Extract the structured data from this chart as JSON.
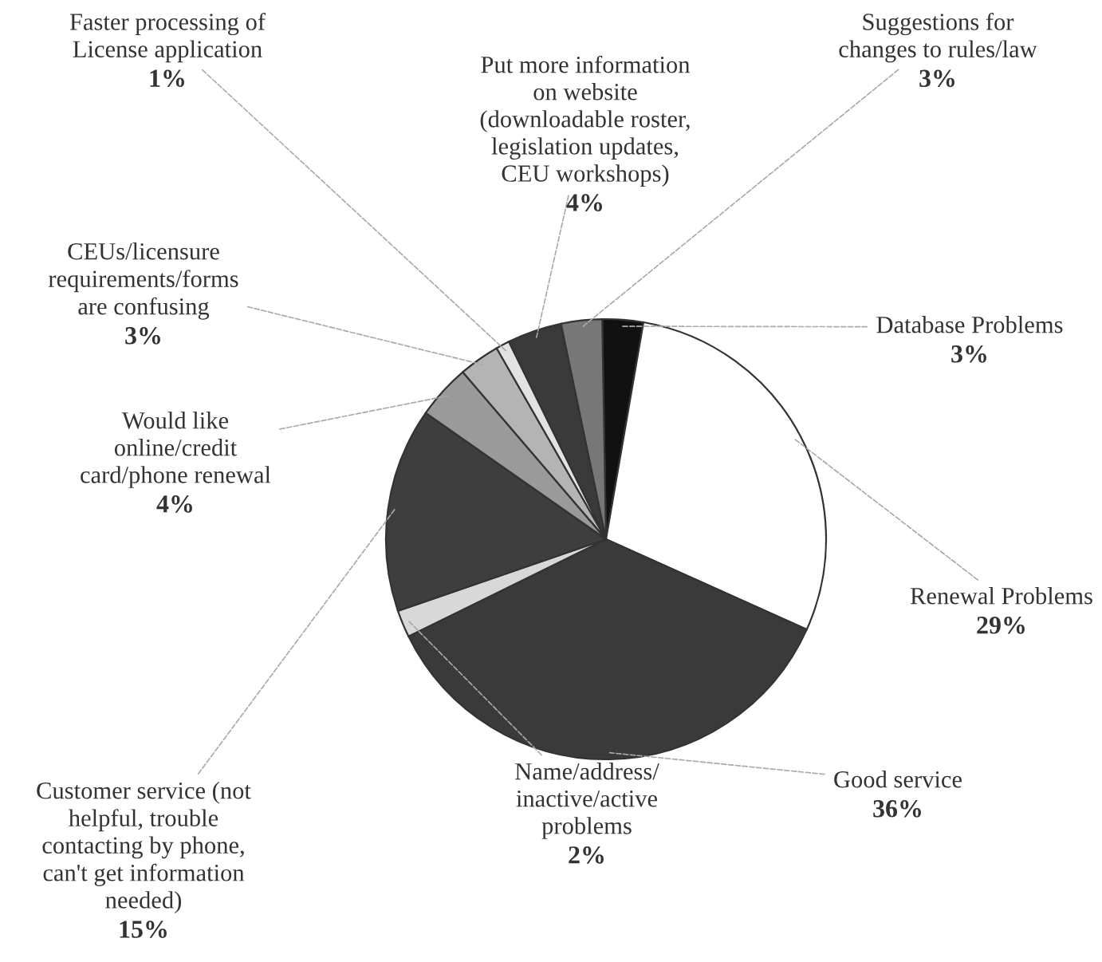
{
  "chart_data": {
    "type": "pie",
    "categories": [
      "Database Problems",
      "Renewal Problems",
      "Good service",
      "Name/address/\ninactive/active\nproblems",
      "Customer service (not\nhelpful, trouble\ncontacting by phone,\ncan't get information\nneeded)",
      "Would like\nonline/credit\ncard/phone renewal",
      "CEUs/licensure\nrequirements/forms\nare confusing",
      "Faster processing of\nLicense application",
      "Put more information\non website\n(downloadable roster,\nlegislation updates,\nCEU workshops)",
      "Suggestions for\nchanges to rules/law"
    ],
    "values": [
      3,
      29,
      36,
      2,
      15,
      4,
      3,
      1,
      4,
      3
    ],
    "value_labels": [
      "3%",
      "29%",
      "36%",
      "2%",
      "15%",
      "4%",
      "3%",
      "1%",
      "4%",
      "3%"
    ],
    "colors": [
      "#111111",
      "#ffffff",
      "#3a3a3a",
      "#d8d8d8",
      "#3e3e3e",
      "#9a9a9a",
      "#b4b4b4",
      "#e2e2e2",
      "#3a3a3a",
      "#777777"
    ]
  }
}
